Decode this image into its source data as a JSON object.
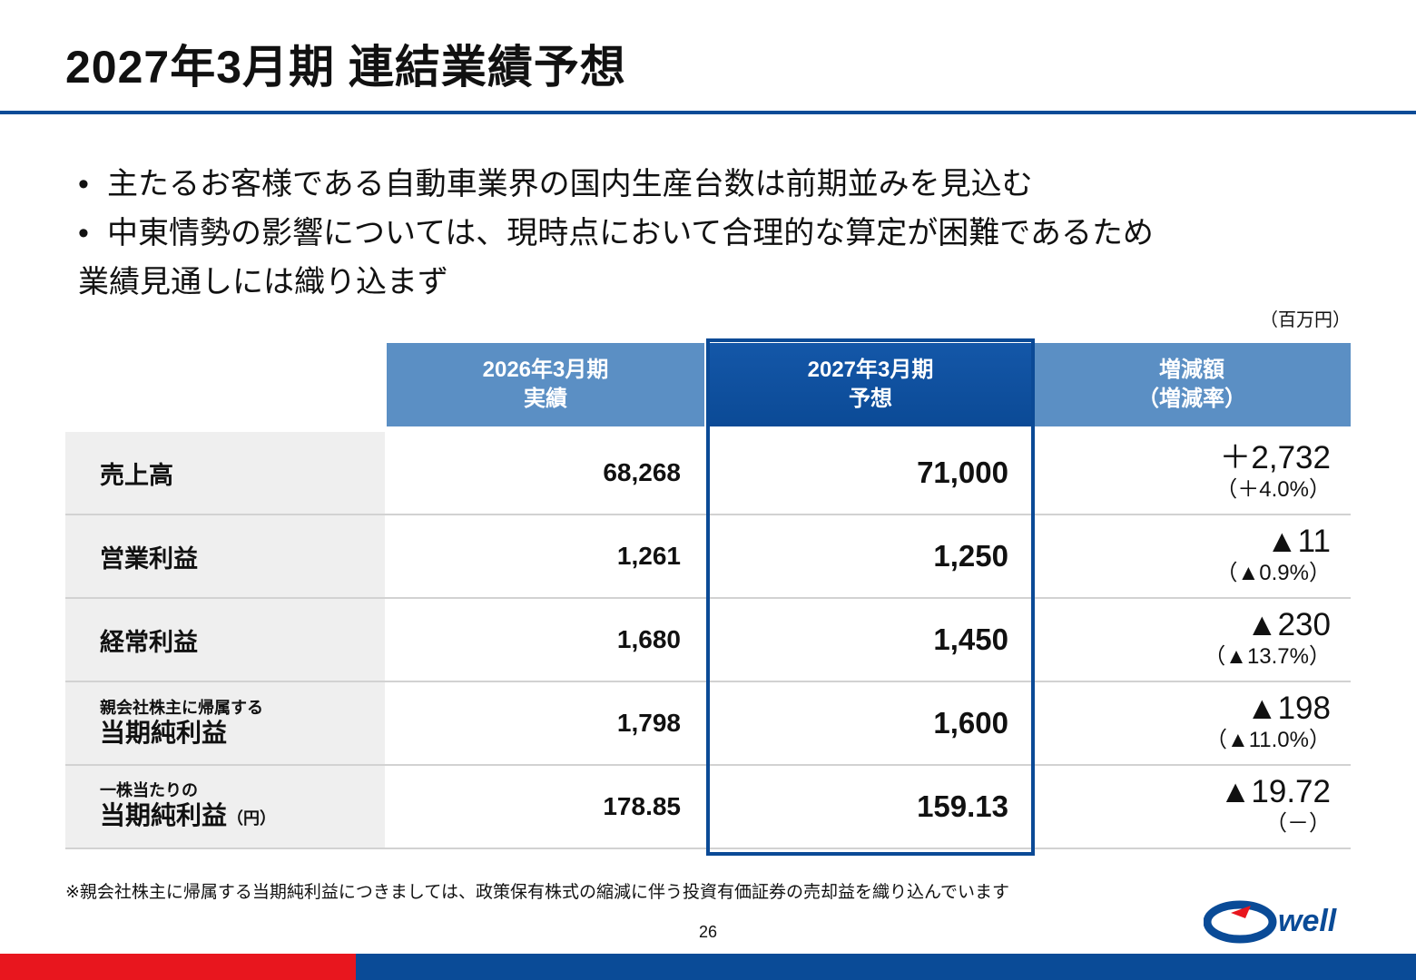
{
  "title": "2027年3月期 連結業績予想",
  "bullets": [
    "主たるお客様である自動車業界の国内生産台数は前期並みを見込む",
    "中東情勢の影響については、現時点において合理的な算定が困難であるため",
    "業績見通しには織り込まず"
  ],
  "bullet_symbol": "•",
  "unit": "（百万円）",
  "headers": {
    "col1": [
      "2026年3月期",
      "実績"
    ],
    "col2": [
      "2027年3月期",
      "予想"
    ],
    "col3": [
      "増減額",
      "（増減率）"
    ]
  },
  "rows": [
    {
      "label": "売上高",
      "v2026": "68,268",
      "v2027": "71,000",
      "change": "＋2,732",
      "rate": "（＋4.0%）"
    },
    {
      "label": "営業利益",
      "v2026": "1,261",
      "v2027": "1,250",
      "change": "▲11",
      "rate": "（▲0.9%）"
    },
    {
      "label": "経常利益",
      "v2026": "1,680",
      "v2027": "1,450",
      "change": "▲230",
      "rate": "（▲13.7%）"
    },
    {
      "label_pre": "親会社株主に帰属する",
      "label": "当期純利益",
      "v2026": "1,798",
      "v2027": "1,600",
      "change": "▲198",
      "rate": "（▲11.0%）"
    },
    {
      "label_pre": "一株当たりの",
      "label": "当期純利益",
      "label_suffix": "（円）",
      "v2026": "178.85",
      "v2027": "159.13",
      "change": "▲19.72",
      "rate": "（－）"
    }
  ],
  "note": "※親会社株主に帰属する当期純利益につきましては、政策保有株式の縮減に伴う投資有価証券の売却益を織り込んでいます",
  "page_number": "26",
  "logo": {
    "text": "well",
    "name": "owell-logo"
  },
  "colors": {
    "brand_blue": "#0a4b97",
    "header_light": "#5b8fc4",
    "brand_red": "#e8161e"
  }
}
